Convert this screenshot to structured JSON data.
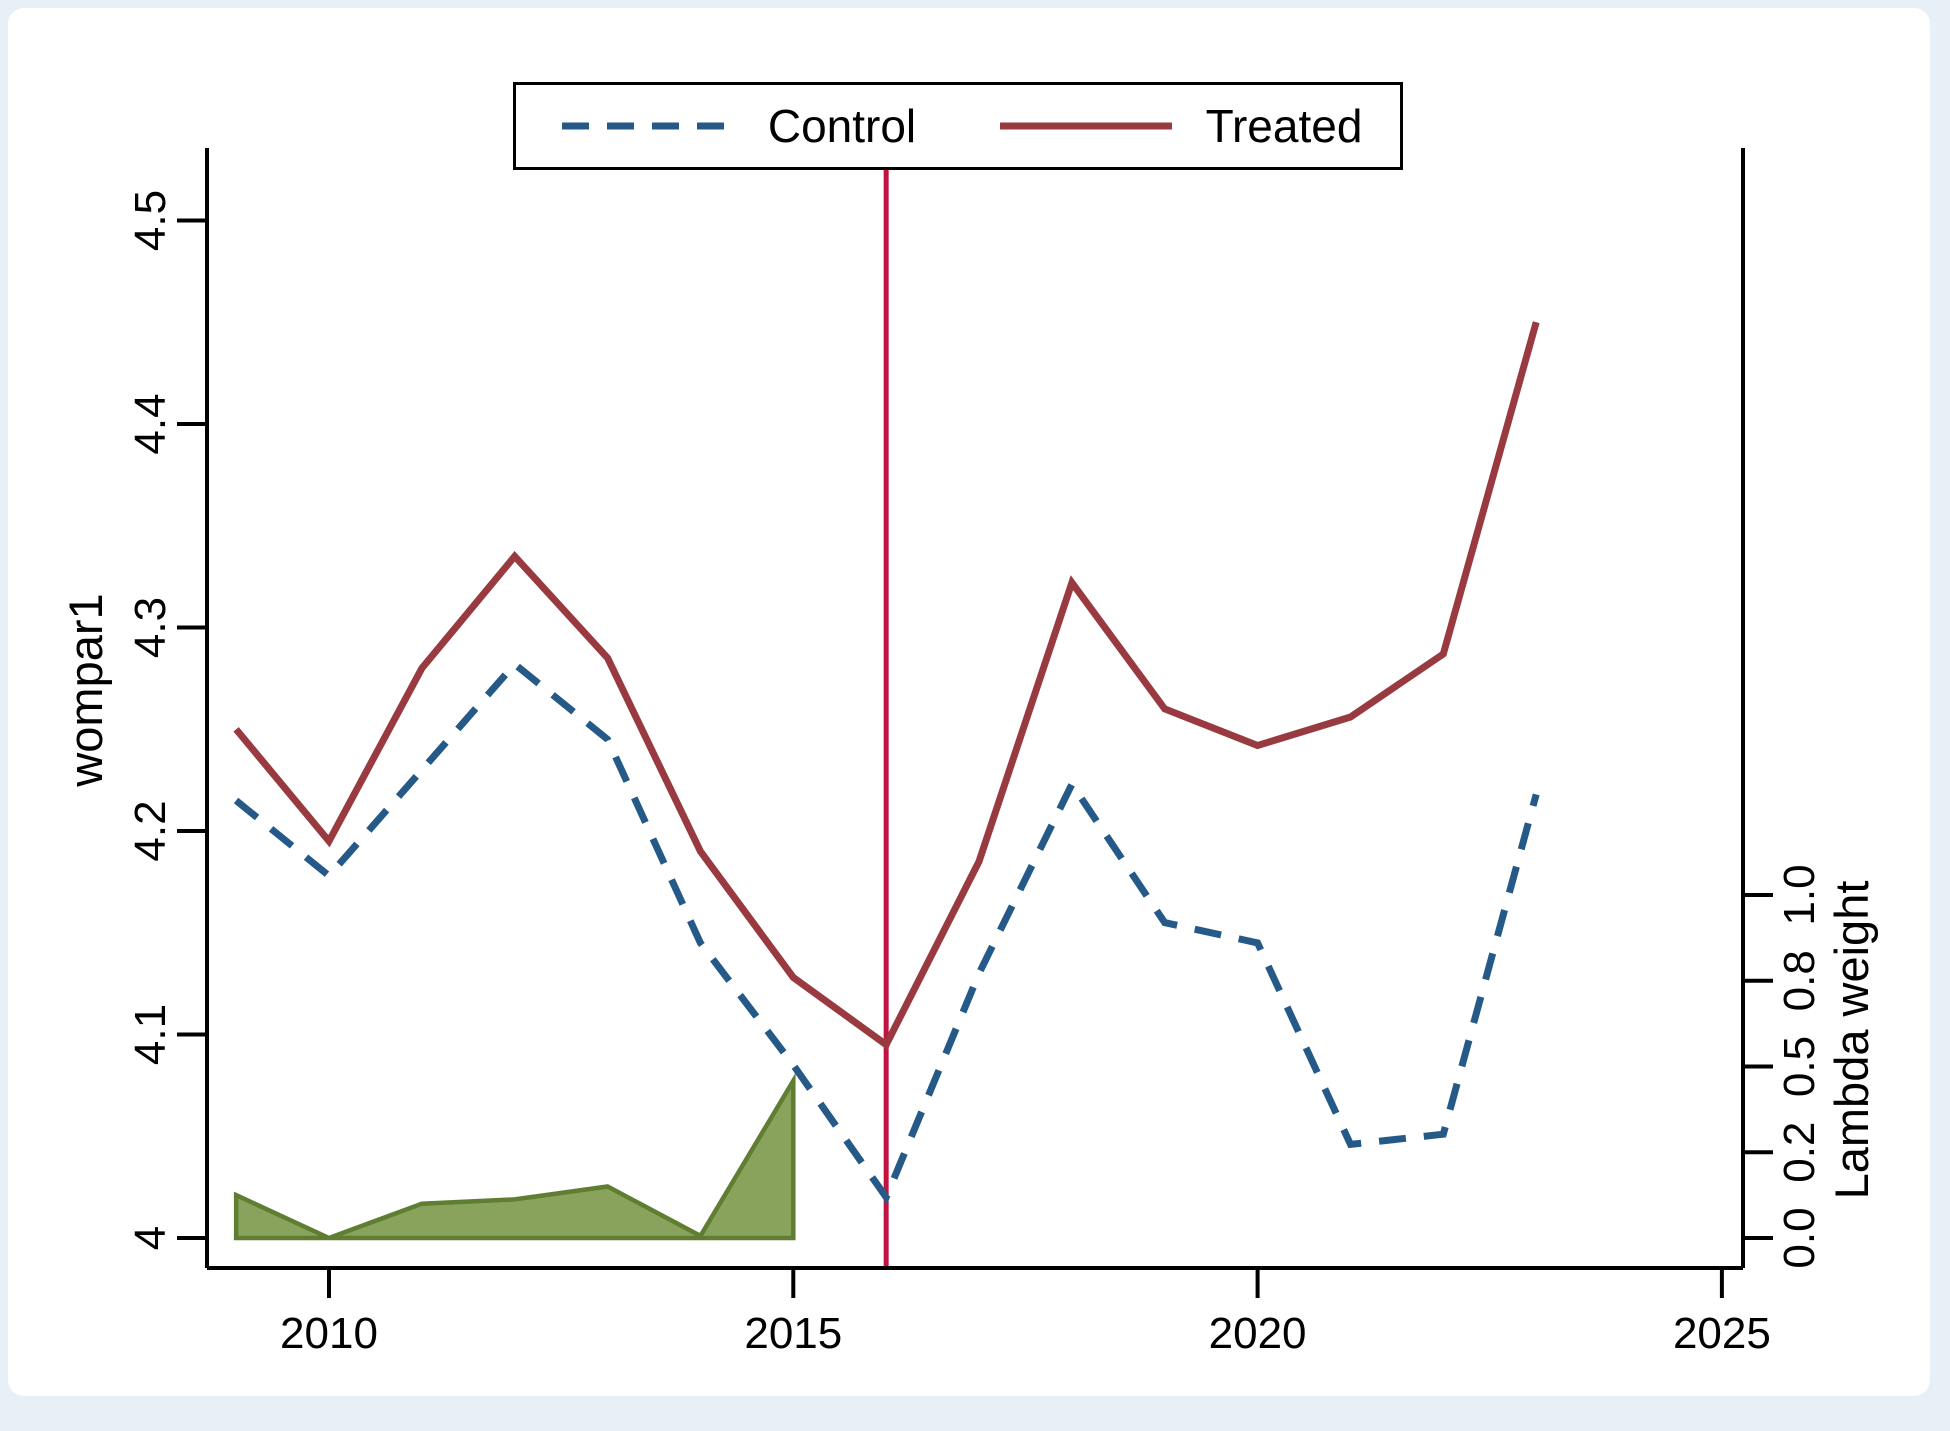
{
  "colors": {
    "control_line": "#255a88",
    "treated_line": "#993a40",
    "treatment_vline": "#c11240",
    "lambda_fill": "#8aa35c",
    "lambda_stroke": "#5f7e31",
    "axis": "#000000",
    "panel_background": "#ffffff",
    "page_edge": "#e7f0f7"
  },
  "legend": {
    "items": [
      {
        "label": "Control",
        "series": "control",
        "style": "dashed"
      },
      {
        "label": "Treated",
        "series": "treated",
        "style": "solid"
      }
    ]
  },
  "chart_data": {
    "type": "line",
    "x_years": [
      2009,
      2010,
      2011,
      2012,
      2013,
      2014,
      2015,
      2016,
      2017,
      2018,
      2019,
      2020,
      2021,
      2022,
      2023
    ],
    "series": [
      {
        "name": "Control",
        "style": "dashed",
        "color_key": "control_line",
        "values": [
          4.215,
          4.178,
          4.23,
          4.282,
          4.245,
          4.145,
          4.085,
          4.02,
          4.13,
          4.223,
          4.155,
          4.145,
          4.046,
          4.051,
          4.218
        ]
      },
      {
        "name": "Treated",
        "style": "solid",
        "color_key": "treated_line",
        "values": [
          4.25,
          4.195,
          4.28,
          4.335,
          4.285,
          4.19,
          4.128,
          4.095,
          4.185,
          4.322,
          4.26,
          4.242,
          4.256,
          4.287,
          4.45
        ]
      }
    ],
    "lambda_area": {
      "name": "Lambda weight",
      "years": [
        2009,
        2010,
        2011,
        2012,
        2013,
        2014,
        2015
      ],
      "values": [
        0.1,
        0.0,
        0.08,
        0.09,
        0.12,
        0.005,
        0.45
      ]
    },
    "treatment_line": {
      "year": 2016
    },
    "left_axis": {
      "label": "wompar1",
      "tick_values": [
        4.0,
        4.1,
        4.2,
        4.3,
        4.4,
        4.5
      ],
      "tick_labels": [
        "4",
        "4.1",
        "4.2",
        "4.3",
        "4.4",
        "4.5"
      ],
      "range": [
        3.985,
        4.535
      ]
    },
    "bottom_axis": {
      "tick_values": [
        2010,
        2015,
        2020,
        2025
      ],
      "tick_labels": [
        "2010",
        "2015",
        "2020",
        "2025"
      ],
      "range": [
        2008.7,
        2025.2
      ]
    },
    "right_axis": {
      "label": "Lambda weight",
      "tick_values": [
        0.0,
        0.2,
        0.5,
        0.8,
        1.0
      ],
      "tick_labels": [
        "0.0",
        "0.2",
        "0.5",
        "0.8",
        "1.0"
      ]
    },
    "legend_position": "top-center",
    "grid": false
  }
}
